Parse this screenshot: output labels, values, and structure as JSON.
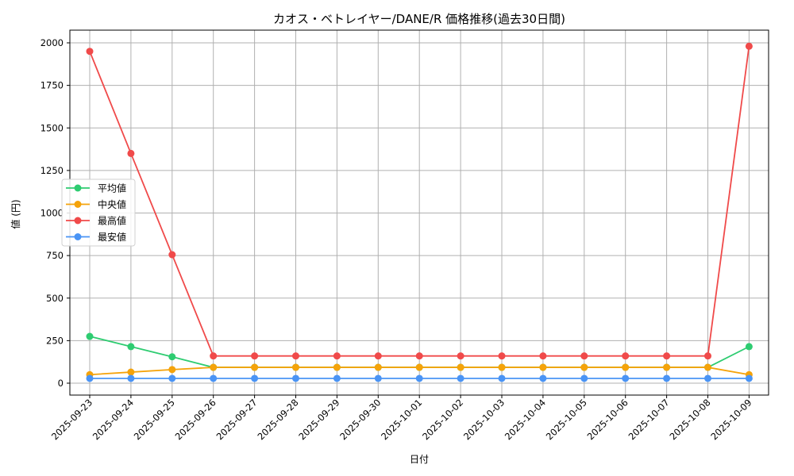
{
  "chart_data": {
    "type": "line",
    "title": "カオス・ベトレイヤー/DANE/R 価格推移(過去30日間)",
    "xlabel": "日付",
    "ylabel": "値 (円)",
    "ylim": [
      -70,
      2070
    ],
    "yticks": [
      0,
      250,
      500,
      750,
      1000,
      1250,
      1500,
      1750,
      2000
    ],
    "grid": true,
    "legend_position": "center left",
    "categories": [
      "2025-09-23",
      "2025-09-24",
      "2025-09-25",
      "2025-09-26",
      "2025-09-27",
      "2025-09-28",
      "2025-09-29",
      "2025-09-30",
      "2025-10-01",
      "2025-10-02",
      "2025-10-03",
      "2025-10-04",
      "2025-10-05",
      "2025-10-06",
      "2025-10-07",
      "2025-10-08",
      "2025-10-09"
    ],
    "series": [
      {
        "name": "平均値",
        "color": "#2ecc71",
        "values": [
          275,
          215,
          155,
          93,
          93,
          93,
          93,
          93,
          93,
          93,
          93,
          93,
          93,
          93,
          93,
          93,
          215
        ]
      },
      {
        "name": "中央値",
        "color": "#f5a30a",
        "values": [
          50,
          65,
          80,
          93,
          93,
          93,
          93,
          93,
          93,
          93,
          93,
          93,
          93,
          93,
          93,
          93,
          50
        ]
      },
      {
        "name": "最高値",
        "color": "#f04a4a",
        "values": [
          1950,
          1350,
          755,
          160,
          160,
          160,
          160,
          160,
          160,
          160,
          160,
          160,
          160,
          160,
          160,
          160,
          1980
        ]
      },
      {
        "name": "最安値",
        "color": "#4a94f5",
        "values": [
          28,
          28,
          28,
          28,
          28,
          28,
          28,
          28,
          28,
          28,
          28,
          28,
          28,
          28,
          28,
          28,
          28
        ]
      }
    ]
  }
}
